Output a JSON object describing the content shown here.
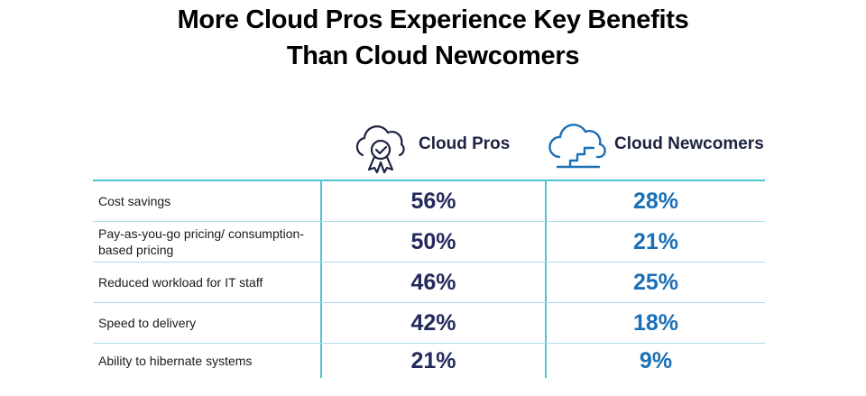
{
  "header": {
    "title": [
      "More Cloud Pros Experience Key Benefits",
      "Than Cloud Newcomers"
    ]
  },
  "table": {
    "columns": [
      "Cloud Pros",
      "Cloud Newcomers"
    ],
    "rows": [
      [
        "Cost savings",
        "56%",
        "28%"
      ],
      [
        "Pay-as-you-go pricing/ consumption-based pricing",
        "50%",
        "21%"
      ],
      [
        "Reduced workload for IT staff",
        "46%",
        "25%"
      ],
      [
        "Speed to delivery",
        "42%",
        "18%"
      ],
      [
        "Ability to hibernate systems",
        "21%",
        "9%"
      ]
    ]
  }
}
